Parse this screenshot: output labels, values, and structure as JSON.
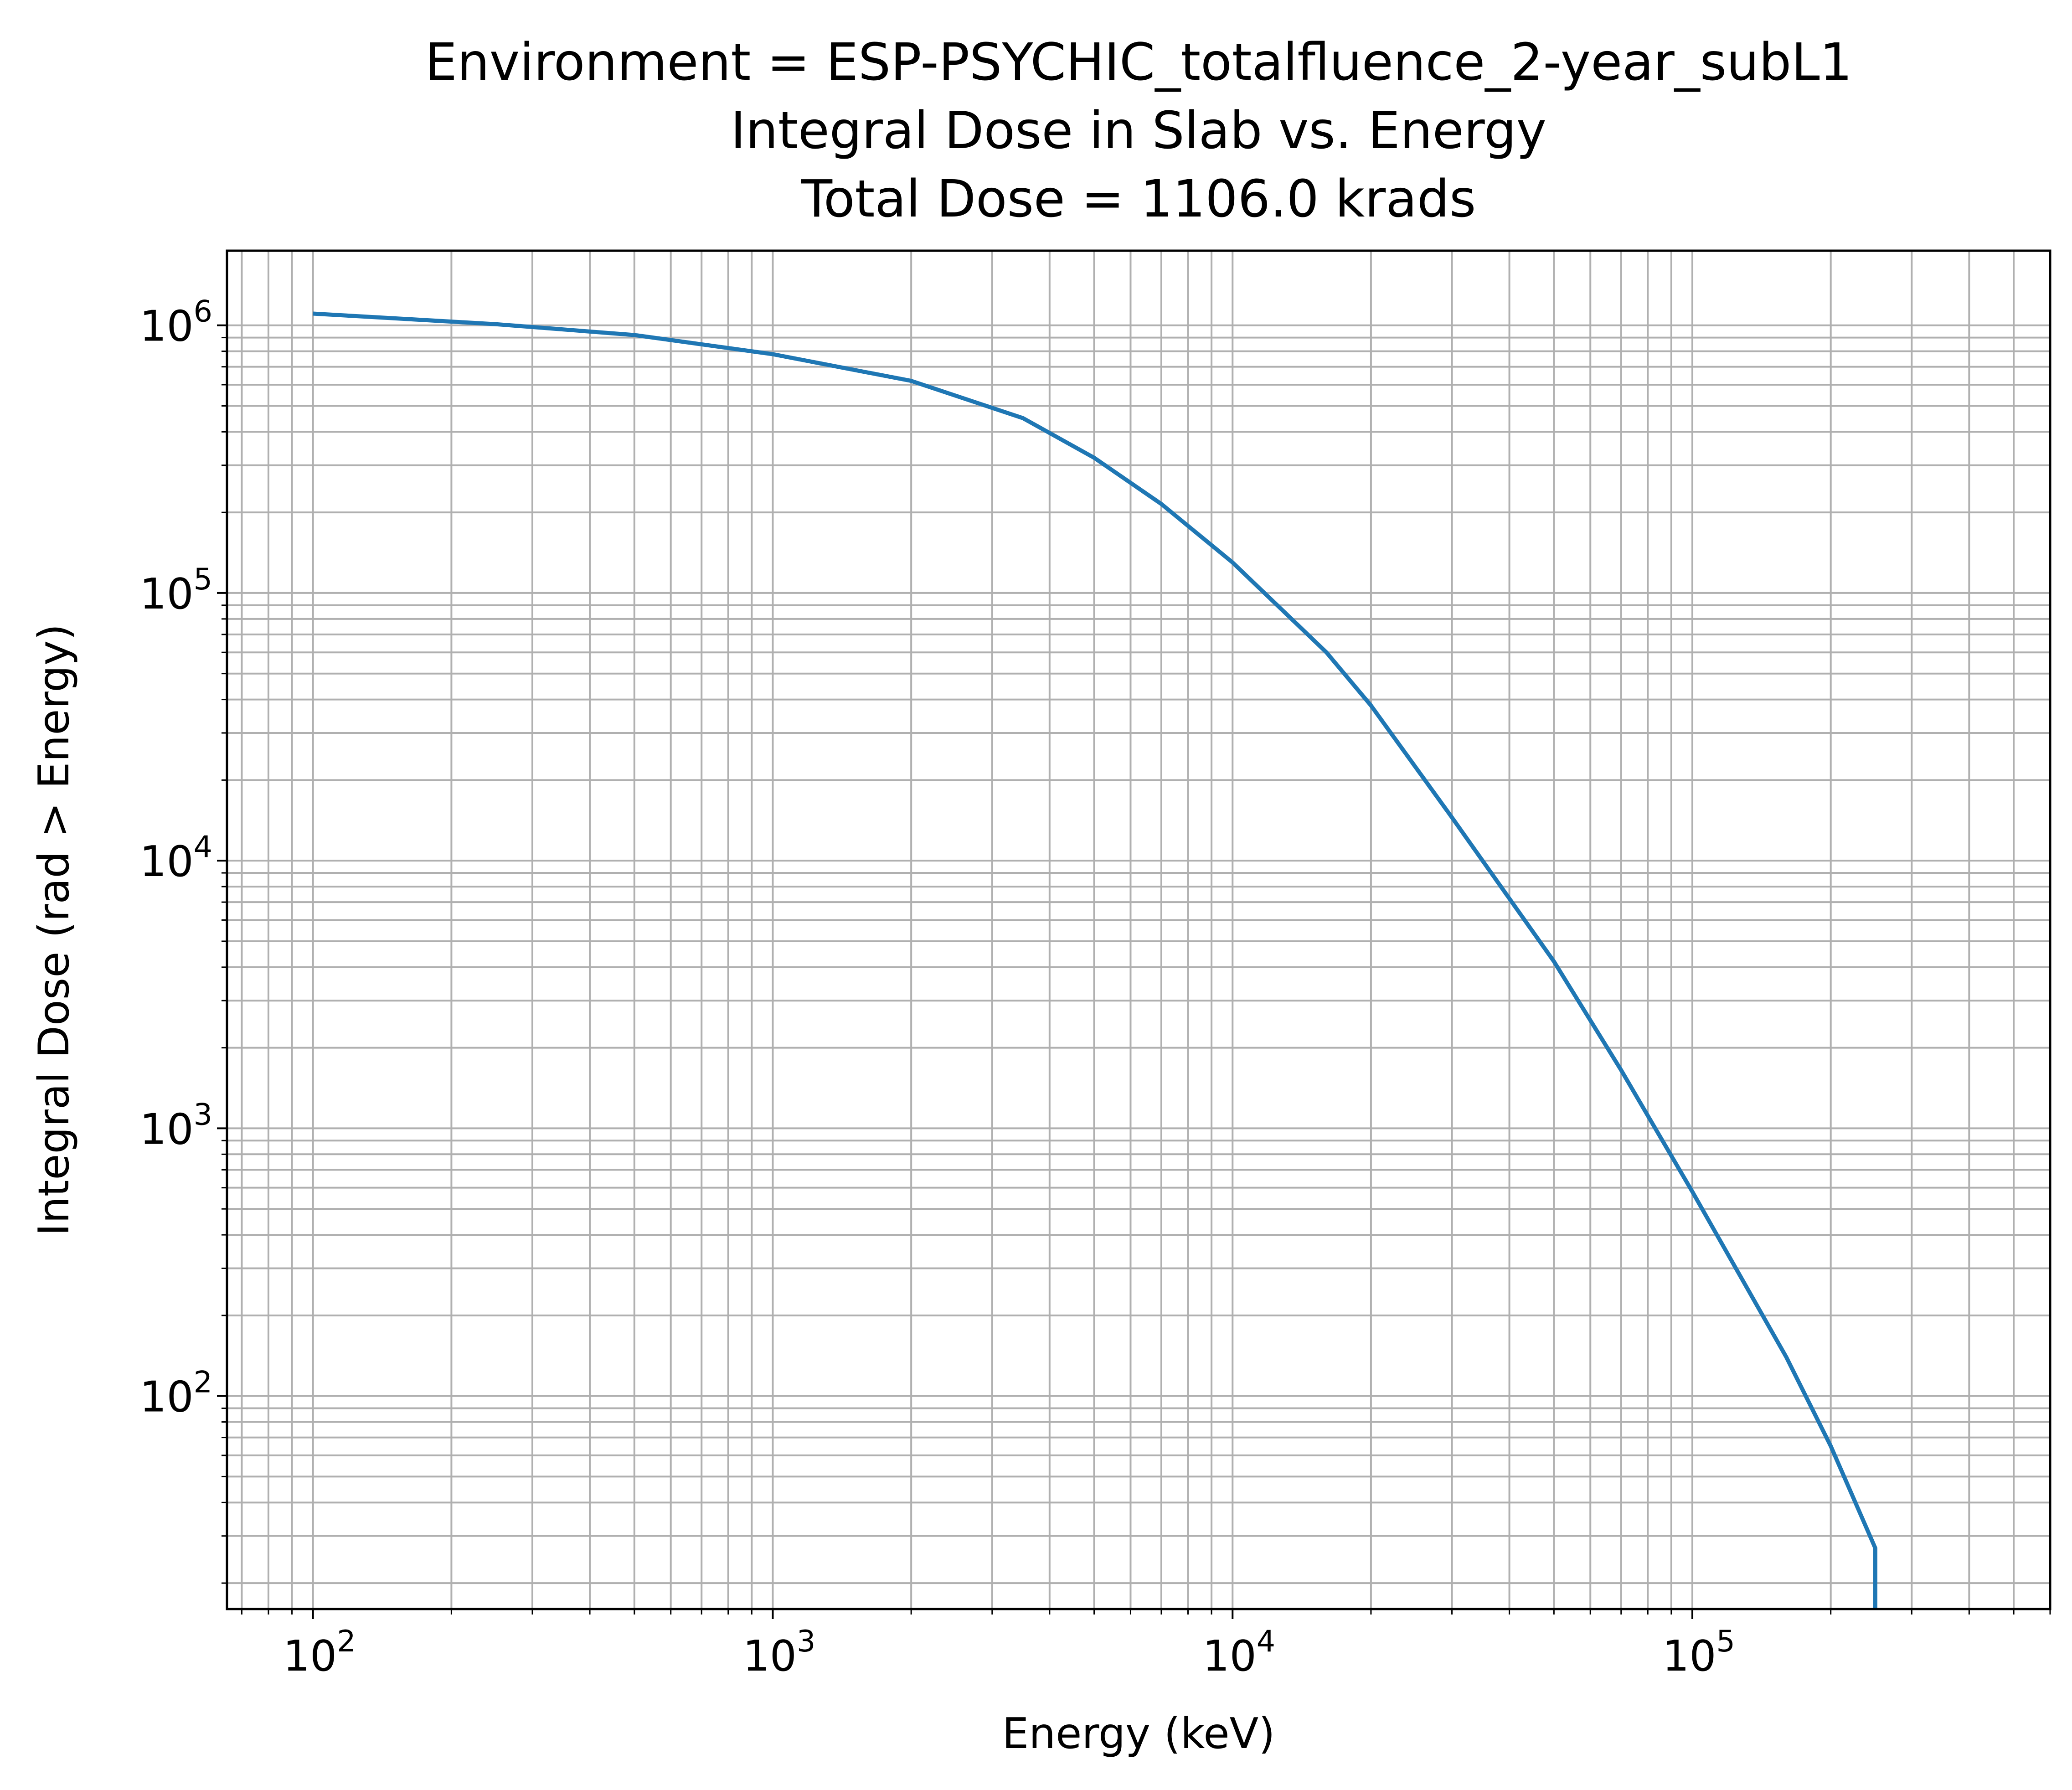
{
  "chart_data": {
    "type": "line",
    "title_lines": [
      "Environment = ESP-PSYCHIC_totalfluence_2-year_subL1",
      "Integral Dose in Slab vs. Energy",
      "Total Dose = 1106.0 krads"
    ],
    "xlabel": "Energy (keV)",
    "ylabel": "Integral Dose (rad > Energy)",
    "xscale": "log",
    "yscale": "log",
    "xlim": [
      65,
      600000
    ],
    "ylim": [
      16,
      1900000
    ],
    "grid": true,
    "grid_minor": true,
    "legend": "none",
    "x_ticks": [
      {
        "value": 100,
        "base": "10",
        "exp": "2"
      },
      {
        "value": 1000,
        "base": "10",
        "exp": "3"
      },
      {
        "value": 10000,
        "base": "10",
        "exp": "4"
      },
      {
        "value": 100000,
        "base": "10",
        "exp": "5"
      }
    ],
    "y_ticks": [
      {
        "value": 100,
        "base": "10",
        "exp": "2"
      },
      {
        "value": 1000,
        "base": "10",
        "exp": "3"
      },
      {
        "value": 10000,
        "base": "10",
        "exp": "4"
      },
      {
        "value": 100000,
        "base": "10",
        "exp": "5"
      },
      {
        "value": 1000000,
        "base": "10",
        "exp": "6"
      }
    ],
    "series": [
      {
        "color": "#1f77b4",
        "x": [
          100,
          250,
          500,
          1000,
          2000,
          3500,
          5000,
          7000,
          10000,
          16000,
          20000,
          30000,
          50000,
          70000,
          100000,
          160000,
          200000,
          250000,
          250000
        ],
        "y": [
          1106000,
          1010000,
          920000,
          780000,
          620000,
          450000,
          320000,
          215000,
          130000,
          60000,
          38000,
          14500,
          4200,
          1650,
          580,
          140,
          65,
          27,
          16
        ]
      }
    ]
  },
  "colors": {
    "line": "#1f77b4",
    "grid": "#b0b0b0",
    "axes": "#000000"
  }
}
